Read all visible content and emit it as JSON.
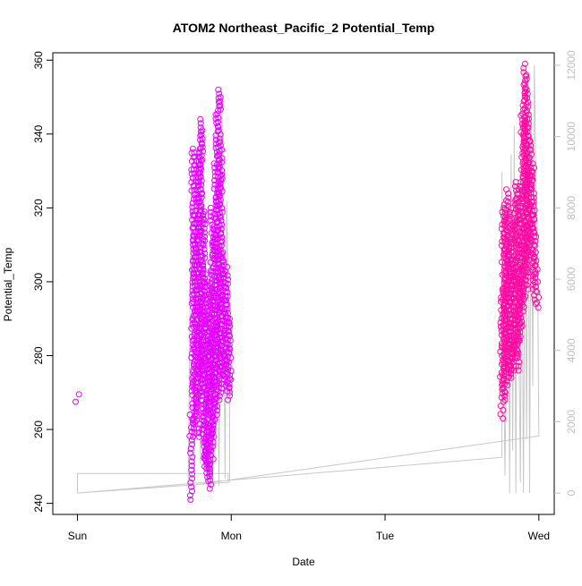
{
  "chart_data": {
    "type": "scatter",
    "title": "ATOM2 Northeast_Pacific_2 Potential_Temp",
    "xlabel": "Date",
    "ylabel": "Potential_Temp",
    "x_ticks": [
      "Sun",
      "Mon",
      "Tue",
      "Wed"
    ],
    "xlim": [
      -0.16,
      3.1
    ],
    "ylim": [
      237,
      362
    ],
    "y_ticks": [
      240,
      260,
      280,
      300,
      320,
      340,
      360
    ],
    "y2lim": [
      -600,
      12350
    ],
    "y2_ticks": [
      0,
      2000,
      4000,
      6000,
      8000,
      10000,
      12000
    ],
    "grid": false,
    "colors": {
      "early": "#e600ff",
      "late": "#ff0aa5",
      "line": "#c8c8c8",
      "axis": "#000000",
      "axis2": "#bfbfbf"
    },
    "clusters": [
      {
        "color": "early",
        "x": [
          0.0,
          0.0
        ],
        "y": [
          [
            267.5,
            269.5
          ]
        ]
      },
      {
        "color": "early",
        "x": [
          0.74,
          0.99
        ],
        "y": [
          [
            241,
            264
          ],
          [
            258,
            336
          ],
          [
            262,
            335
          ],
          [
            266,
            318
          ],
          [
            258,
            336
          ],
          [
            270,
            344
          ],
          [
            274,
            341
          ],
          [
            252,
            319
          ],
          [
            250,
            302
          ],
          [
            246,
            290
          ],
          [
            248,
            300
          ],
          [
            244,
            298
          ],
          [
            252,
            320
          ],
          [
            258,
            314
          ],
          [
            264,
            332
          ],
          [
            272,
            352
          ],
          [
            268,
            350
          ],
          [
            276,
            338
          ],
          [
            270,
            308
          ],
          [
            275,
            302
          ],
          [
            272,
            304
          ],
          [
            268,
            295
          ],
          [
            270,
            290
          ]
        ]
      },
      {
        "color": "late",
        "x": [
          2.76,
          2.99
        ],
        "y": [
          [
            263,
            298
          ],
          [
            268,
            320
          ],
          [
            270,
            322
          ],
          [
            274,
            318
          ],
          [
            272,
            325
          ],
          [
            276,
            305
          ],
          [
            274,
            320
          ],
          [
            276,
            316
          ],
          [
            278,
            306
          ],
          [
            276,
            322
          ],
          [
            280,
            327
          ],
          [
            276,
            325
          ],
          [
            284,
            304
          ],
          [
            288,
            327
          ],
          [
            292,
            345
          ],
          [
            296,
            359
          ],
          [
            302,
            356
          ],
          [
            298,
            352
          ],
          [
            306,
            344
          ],
          [
            310,
            338
          ],
          [
            312,
            330
          ],
          [
            302,
            332
          ],
          [
            298,
            318
          ],
          [
            294,
            308
          ],
          [
            293,
            300
          ]
        ]
      }
    ],
    "line_series": [
      [
        0.0,
        0
      ],
      [
        0.0,
        550
      ],
      [
        0.98,
        550
      ],
      [
        0.98,
        300
      ],
      [
        0.0,
        0
      ],
      [
        0.0,
        0
      ],
      [
        2.76,
        1000
      ],
      [
        2.76,
        9000
      ],
      [
        2.78,
        500
      ],
      [
        2.8,
        8000
      ],
      [
        2.81,
        0
      ],
      [
        2.82,
        9500
      ],
      [
        2.83,
        1200
      ],
      [
        2.84,
        10300
      ],
      [
        2.85,
        0
      ],
      [
        2.86,
        8700
      ],
      [
        2.88,
        300
      ],
      [
        2.89,
        9000
      ],
      [
        2.9,
        0
      ],
      [
        2.91,
        7800
      ],
      [
        2.92,
        1500
      ],
      [
        2.93,
        11800
      ],
      [
        2.94,
        0
      ],
      [
        2.95,
        10700
      ],
      [
        2.96,
        3000
      ],
      [
        2.97,
        12000
      ],
      [
        2.98,
        9000
      ],
      [
        2.99,
        7500
      ],
      [
        3.0,
        1600
      ],
      [
        0.72,
        200
      ],
      [
        0.74,
        8800
      ],
      [
        0.76,
        500
      ],
      [
        0.78,
        9000
      ],
      [
        0.8,
        800
      ],
      [
        0.82,
        8700
      ],
      [
        0.84,
        300
      ],
      [
        0.86,
        7000
      ],
      [
        0.88,
        500
      ],
      [
        0.9,
        9500
      ],
      [
        0.92,
        200
      ],
      [
        0.94,
        10800
      ],
      [
        0.96,
        400
      ],
      [
        0.97,
        8200
      ],
      [
        0.99,
        3800
      ],
      [
        0.99,
        300
      ]
    ]
  }
}
